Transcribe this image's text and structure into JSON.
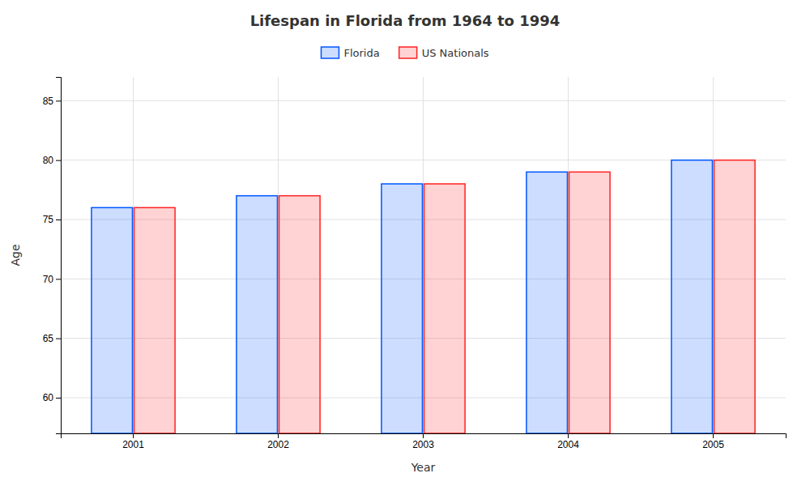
{
  "chart_data": {
    "type": "bar",
    "title": "Lifespan in Florida from 1964 to 1994",
    "xlabel": "Year",
    "ylabel": "Age",
    "categories": [
      "2001",
      "2002",
      "2003",
      "2004",
      "2005"
    ],
    "series": [
      {
        "name": "Florida",
        "color": "#0055ff",
        "values": [
          76,
          77,
          78,
          79,
          80
        ]
      },
      {
        "name": "US Nationals",
        "color": "#ff2222",
        "values": [
          76,
          77,
          78,
          79,
          80
        ]
      }
    ],
    "ylim": [
      57,
      87
    ],
    "yticks": [
      60,
      65,
      70,
      75,
      80,
      85
    ],
    "grid": true,
    "legend": "top"
  }
}
